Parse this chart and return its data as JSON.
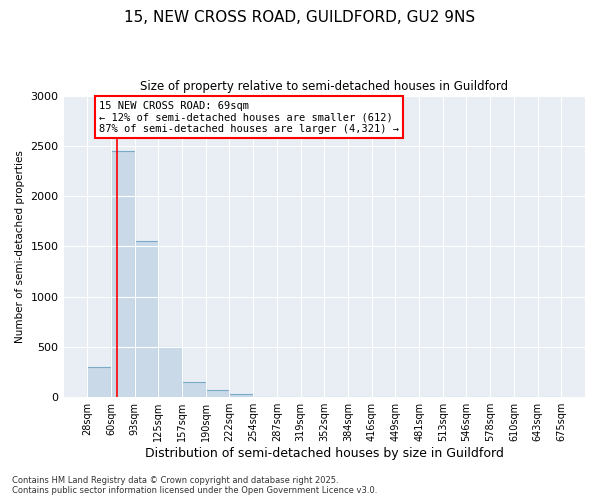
{
  "title_line1": "15, NEW CROSS ROAD, GUILDFORD, GU2 9NS",
  "title_line2": "Size of property relative to semi-detached houses in Guildford",
  "xlabel": "Distribution of semi-detached houses by size in Guildford",
  "ylabel": "Number of semi-detached properties",
  "bins": [
    "28sqm",
    "60sqm",
    "93sqm",
    "125sqm",
    "157sqm",
    "190sqm",
    "222sqm",
    "254sqm",
    "287sqm",
    "319sqm",
    "352sqm",
    "384sqm",
    "416sqm",
    "449sqm",
    "481sqm",
    "513sqm",
    "546sqm",
    "578sqm",
    "610sqm",
    "643sqm",
    "675sqm"
  ],
  "bar_values": [
    300,
    2450,
    1550,
    500,
    150,
    75,
    30,
    5,
    2,
    1,
    0,
    0,
    0,
    0,
    0,
    0,
    0,
    0,
    0,
    0
  ],
  "bar_color": "#c9d9e8",
  "bar_edge_color": "#7aaac8",
  "property_line_x": 1.27,
  "annotation_title": "15 NEW CROSS ROAD: 69sqm",
  "annotation_line2": "← 12% of semi-detached houses are smaller (612)",
  "annotation_line3": "87% of semi-detached houses are larger (4,321) →",
  "annotation_box_color": "white",
  "annotation_box_edge_color": "red",
  "vline_color": "red",
  "ylim": [
    0,
    3000
  ],
  "yticks": [
    0,
    500,
    1000,
    1500,
    2000,
    2500,
    3000
  ],
  "background_color": "#e8eef4",
  "footer_line1": "Contains HM Land Registry data © Crown copyright and database right 2025.",
  "footer_line2": "Contains public sector information licensed under the Open Government Licence v3.0."
}
